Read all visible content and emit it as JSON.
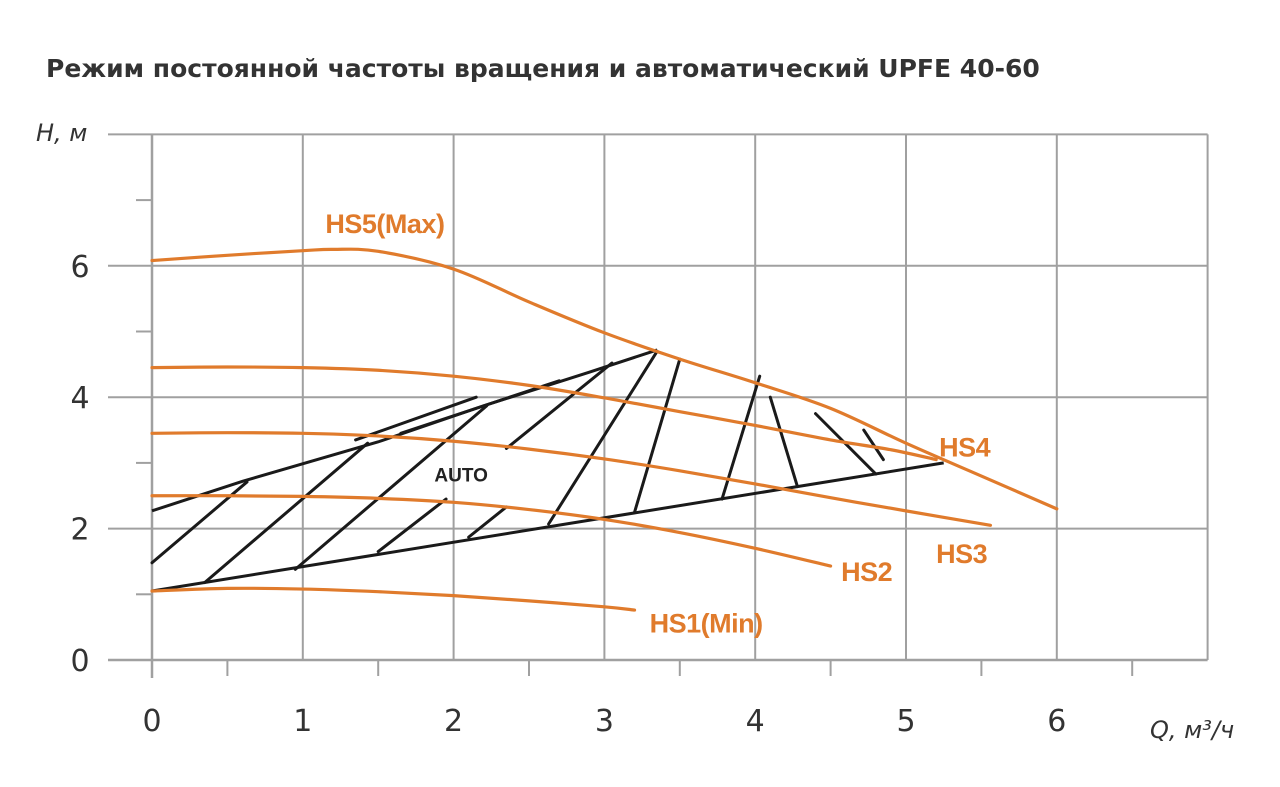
{
  "chart_data": {
    "type": "line",
    "title": "Режим постоянной частоты вращения и автоматический  UPFE 40-60",
    "xlabel": "Q, м³/ч",
    "ylabel": "H, м",
    "xlim": [
      0,
      7
    ],
    "ylim": [
      0,
      8
    ],
    "x_ticks": [
      0,
      1,
      2,
      3,
      4,
      5,
      6
    ],
    "y_ticks": [
      0,
      2,
      4,
      6
    ],
    "grid": true,
    "colors": {
      "curve": "#e07b2c",
      "auto": "#1a1a1a",
      "grid": "#a0a0a0",
      "text": "#333333"
    },
    "series": [
      {
        "name": "HS5(Max)",
        "x": [
          0,
          0.5,
          1.0,
          1.2,
          1.5,
          2.0,
          2.5,
          3.0,
          3.5,
          4.0,
          4.5,
          5.0,
          5.5,
          6.0
        ],
        "y": [
          6.08,
          6.16,
          6.23,
          6.25,
          6.22,
          5.95,
          5.45,
          4.98,
          4.58,
          4.22,
          3.83,
          3.3,
          2.8,
          2.3
        ]
      },
      {
        "name": "HS4",
        "x": [
          0,
          0.5,
          1.0,
          1.5,
          2.0,
          2.5,
          3.0,
          3.5,
          4.0,
          4.5,
          4.9,
          5.2
        ],
        "y": [
          4.45,
          4.46,
          4.45,
          4.41,
          4.32,
          4.18,
          3.99,
          3.78,
          3.57,
          3.35,
          3.2,
          3.05
        ]
      },
      {
        "name": "HS3",
        "x": [
          0,
          0.5,
          1.0,
          1.5,
          2.0,
          2.5,
          3.0,
          3.5,
          4.0,
          4.5,
          5.0,
          5.56
        ],
        "y": [
          3.45,
          3.46,
          3.45,
          3.41,
          3.33,
          3.21,
          3.06,
          2.88,
          2.68,
          2.47,
          2.27,
          2.05
        ]
      },
      {
        "name": "HS2",
        "x": [
          0,
          0.5,
          1.0,
          1.5,
          2.0,
          2.5,
          3.0,
          3.5,
          4.0,
          4.5
        ],
        "y": [
          2.5,
          2.5,
          2.49,
          2.46,
          2.4,
          2.29,
          2.14,
          1.94,
          1.7,
          1.43
        ]
      },
      {
        "name": "HS1(Min)",
        "x": [
          0,
          0.5,
          1.0,
          1.5,
          2.0,
          2.5,
          3.0,
          3.2
        ],
        "y": [
          1.05,
          1.09,
          1.08,
          1.04,
          0.98,
          0.9,
          0.81,
          0.76
        ]
      }
    ],
    "auto_region": {
      "label": "AUTO",
      "lower": {
        "x": [
          0,
          5.25
        ],
        "y": [
          1.05,
          3.0
        ]
      },
      "upper": {
        "x": [
          0,
          0.6,
          1.5,
          2.2,
          2.9,
          3.35
        ],
        "y": [
          2.27,
          2.72,
          3.32,
          3.87,
          4.38,
          4.72
        ]
      },
      "hatch_pairs": [
        [
          0.0,
          1.48,
          0.63,
          2.71
        ],
        [
          0.35,
          1.18,
          1.43,
          3.3
        ],
        [
          0.95,
          1.38,
          2.22,
          3.87
        ],
        [
          1.5,
          1.65,
          1.95,
          2.45
        ],
        [
          2.1,
          1.87,
          2.35,
          2.33
        ],
        [
          2.63,
          2.07,
          3.35,
          4.7
        ],
        [
          3.2,
          2.25,
          3.5,
          4.58
        ],
        [
          3.78,
          2.45,
          4.03,
          4.32
        ],
        [
          4.28,
          2.64,
          4.1,
          4.0
        ],
        [
          4.8,
          2.83,
          4.4,
          3.75
        ],
        [
          4.85,
          3.05,
          4.72,
          3.5
        ],
        [
          2.35,
          3.22,
          3.05,
          4.52
        ],
        [
          1.65,
          3.45,
          2.7,
          4.25
        ],
        [
          1.35,
          3.35,
          2.15,
          4.0
        ]
      ]
    }
  }
}
